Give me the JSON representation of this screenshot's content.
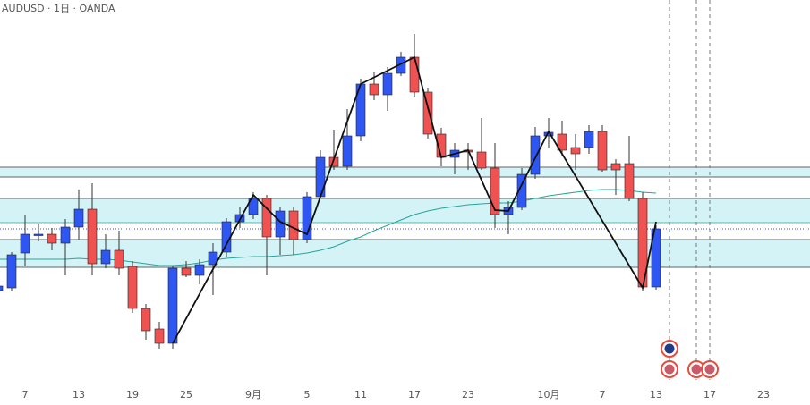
{
  "chart_data": {
    "type": "candlestick",
    "title": "AUDUSD · 1日 · OANDA",
    "categories": [
      null,
      null,
      "7",
      null,
      null,
      null,
      "13",
      null,
      null,
      null,
      "19",
      null,
      null,
      null,
      "25",
      null,
      null,
      null,
      null,
      "9月",
      null,
      null,
      null,
      "5",
      null,
      null,
      null,
      "11",
      null,
      null,
      null,
      "17",
      null,
      null,
      null,
      "23",
      null,
      null,
      null,
      null,
      null,
      "10月",
      null,
      null,
      null,
      "7",
      null,
      null,
      null,
      "13",
      null,
      null,
      null,
      "17",
      null,
      null,
      null,
      "23",
      null,
      null
    ],
    "open": [
      128,
      131,
      170,
      191,
      191,
      181,
      199,
      219,
      158,
      173,
      155,
      108,
      85,
      69,
      153,
      145,
      157,
      171,
      205,
      213,
      231,
      188,
      217,
      185,
      233,
      277,
      267,
      301,
      359,
      347,
      371,
      389,
      350,
      303,
      277,
      285,
      283,
      265,
      213,
      221,
      258,
      301,
      303,
      288,
      288,
      306,
      270,
      270,
      231,
      132,
      null,
      null,
      null,
      null,
      null,
      null,
      null,
      null,
      null,
      null
    ],
    "high": [
      135,
      171,
      213,
      203,
      198,
      208,
      241,
      248,
      191,
      195,
      161,
      113,
      93,
      156,
      161,
      163,
      181,
      209,
      221,
      238,
      235,
      221,
      221,
      238,
      285,
      308,
      331,
      365,
      373,
      378,
      395,
      415,
      355,
      310,
      293,
      293,
      321,
      293,
      228,
      265,
      311,
      321,
      318,
      303,
      313,
      313,
      275,
      301,
      238,
      201,
      null,
      null,
      null,
      null,
      null,
      null,
      null,
      null,
      null,
      null
    ],
    "low": [
      125,
      127,
      155,
      183,
      173,
      145,
      185,
      145,
      153,
      145,
      103,
      73,
      63,
      63,
      143,
      135,
      123,
      166,
      198,
      208,
      145,
      168,
      168,
      181,
      231,
      263,
      263,
      295,
      341,
      329,
      368,
      345,
      298,
      267,
      258,
      263,
      263,
      198,
      191,
      218,
      253,
      288,
      278,
      263,
      281,
      261,
      235,
      228,
      128,
      129,
      null,
      null,
      null,
      null,
      null,
      null,
      null,
      null,
      null,
      null
    ],
    "close": [
      133,
      168,
      191,
      191,
      181,
      199,
      219,
      158,
      173,
      153,
      108,
      83,
      69,
      153,
      145,
      157,
      171,
      205,
      213,
      231,
      188,
      217,
      185,
      233,
      277,
      267,
      301,
      359,
      347,
      371,
      389,
      350,
      303,
      277,
      285,
      283,
      265,
      213,
      221,
      258,
      301,
      305,
      285,
      281,
      306,
      263,
      263,
      231,
      132,
      197,
      null,
      null,
      null,
      null,
      null,
      null,
      null,
      null,
      null,
      null
    ],
    "up_color": "#2e56f2",
    "down_color": "#f05252",
    "ma": {
      "color": "#26a69a",
      "values": [
        163,
        163,
        163,
        163,
        163,
        163,
        164,
        163,
        163,
        162,
        160,
        158,
        156,
        156,
        157,
        159,
        162,
        164,
        165,
        166,
        166,
        167,
        168,
        170,
        173,
        177,
        183,
        188,
        195,
        201,
        207,
        213,
        217,
        220,
        222,
        224,
        225,
        226,
        226,
        228,
        231,
        234,
        236,
        238,
        240,
        241,
        241,
        240,
        238,
        237,
        null,
        null,
        null,
        null,
        null,
        null,
        null,
        null,
        null,
        null
      ]
    },
    "zigzag": {
      "color": "#111111",
      "x": [
        13,
        19,
        21,
        23,
        27,
        31,
        33,
        35,
        37,
        38,
        41,
        48,
        49
      ],
      "values": [
        69,
        235,
        205,
        191,
        359,
        389,
        277,
        285,
        218,
        217,
        306,
        131,
        205
      ]
    },
    "zones": [
      [
        255,
        266
      ],
      [
        204,
        231
      ],
      [
        154,
        185
      ]
    ],
    "zone_color": "#d4f3f6",
    "price_line": 197,
    "ylim": [
      0,
      453
    ]
  }
}
